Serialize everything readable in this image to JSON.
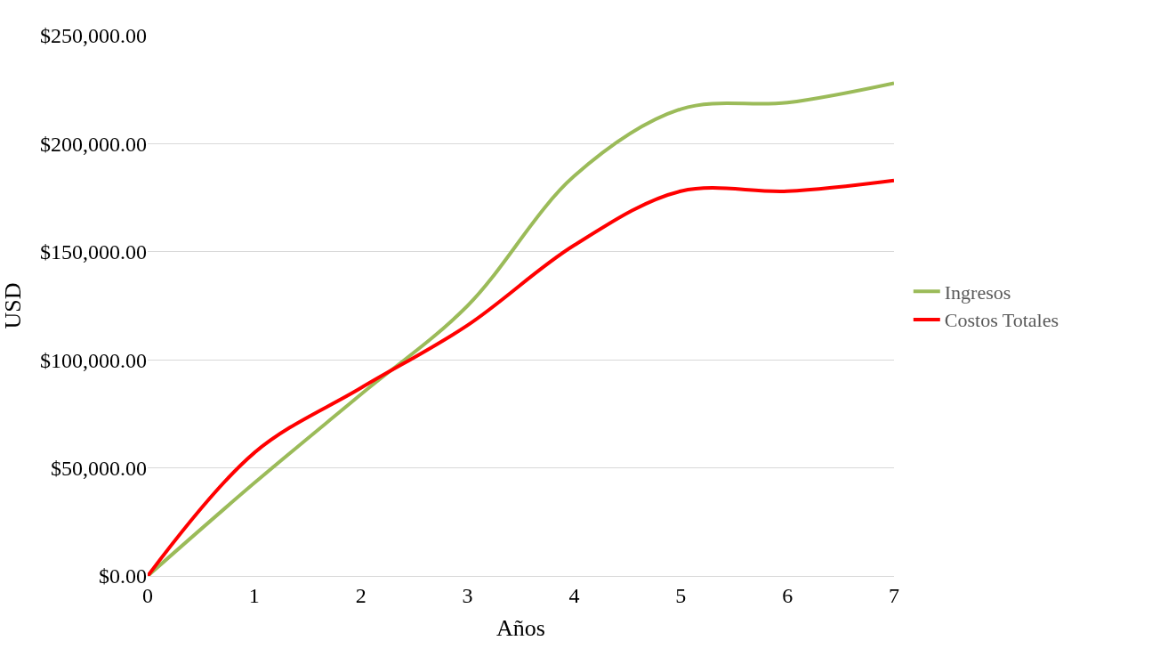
{
  "chart_data": {
    "type": "line",
    "xlabel": "Años",
    "ylabel": "USD",
    "x": [
      0,
      1,
      2,
      3,
      4,
      5,
      6,
      7
    ],
    "series": [
      {
        "name": "Ingresos",
        "color": "#9bbb59",
        "values": [
          0,
          43000,
          84000,
          125000,
          185000,
          216000,
          219000,
          228000
        ]
      },
      {
        "name": "Costos Totales",
        "color": "#ff0000",
        "values": [
          0,
          57000,
          87000,
          116000,
          153000,
          178000,
          178000,
          183000
        ]
      }
    ],
    "xlim": [
      0,
      7
    ],
    "xticks": [
      0,
      1,
      2,
      3,
      4,
      5,
      6,
      7
    ],
    "ylim": [
      0,
      250000
    ],
    "yticks": [
      {
        "value": 0,
        "label": "$0.00"
      },
      {
        "value": 50000,
        "label": "$50,000.00"
      },
      {
        "value": 100000,
        "label": "$100,000.00"
      },
      {
        "value": 150000,
        "label": "$150,000.00"
      },
      {
        "value": 200000,
        "label": "$200,000.00"
      },
      {
        "value": 250000,
        "label": "$250,000.00"
      }
    ],
    "grid": "y",
    "legend": "right",
    "marker": "none",
    "line_style": "solid"
  }
}
